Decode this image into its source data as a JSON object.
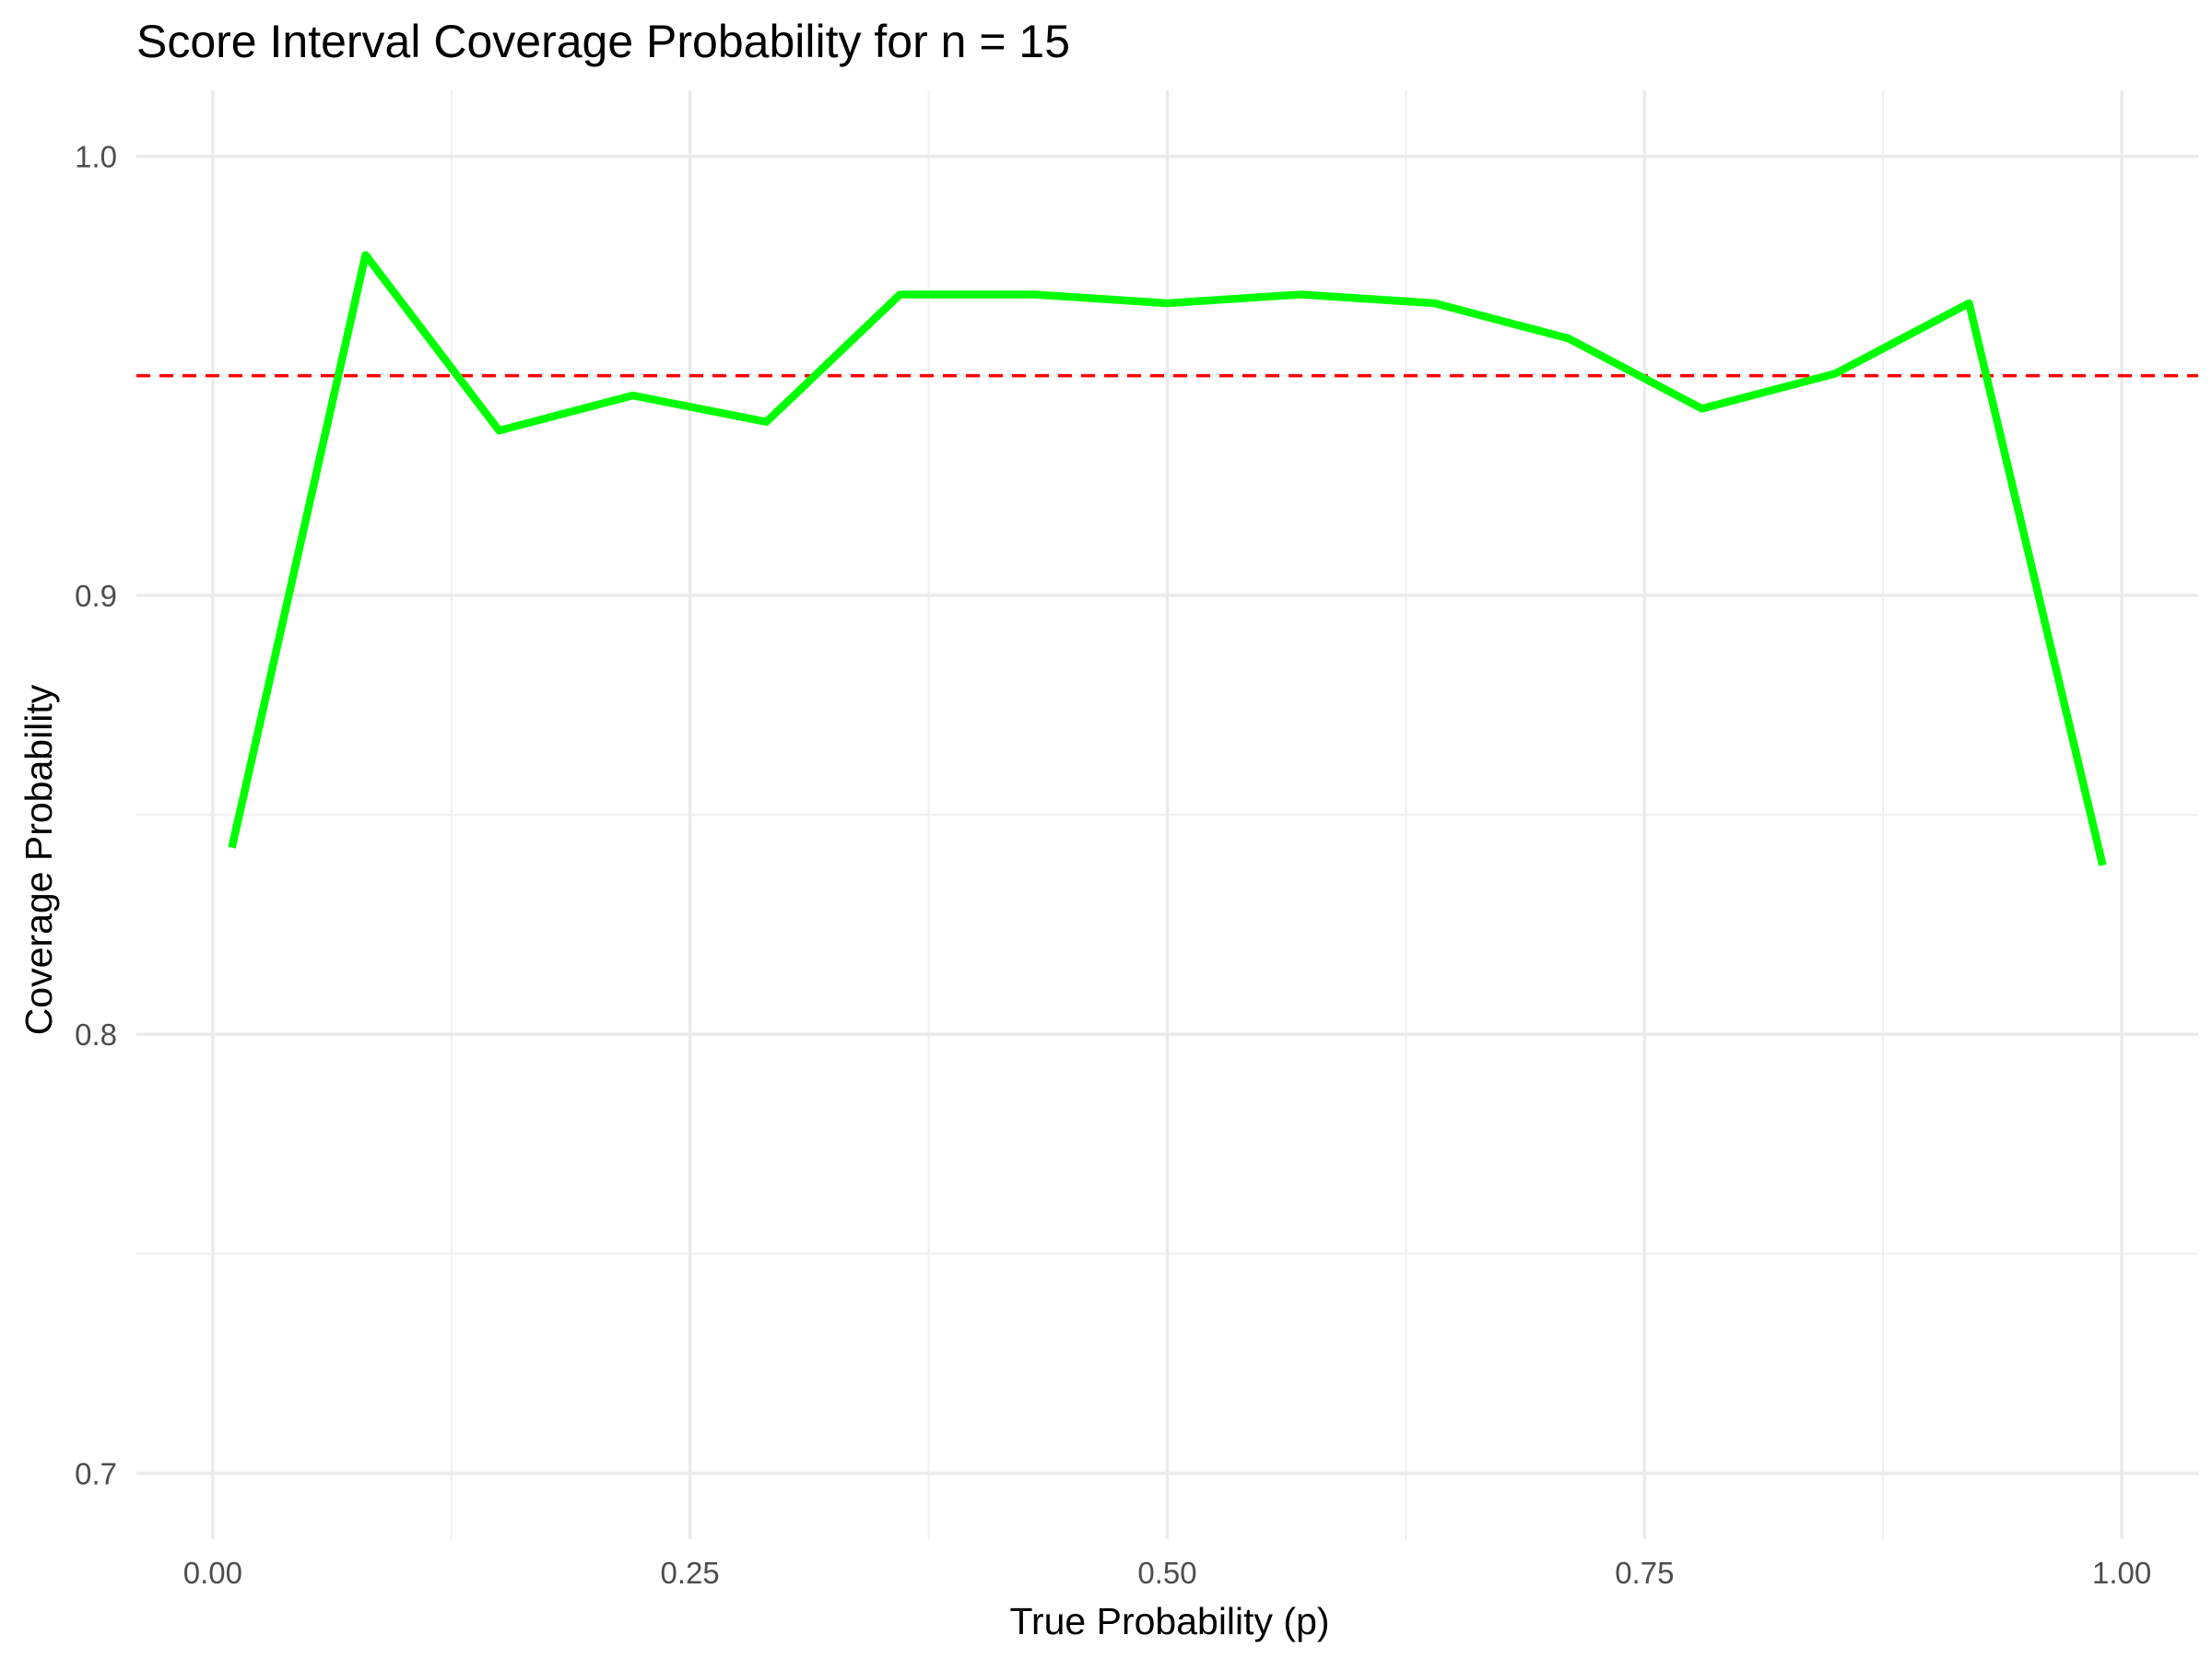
{
  "chart_data": {
    "type": "line",
    "title": "Score Interval Coverage Probability for n = 15",
    "xlabel": "True Probability (p)",
    "ylabel": "Coverage Probability",
    "xlim": [
      -0.04,
      1.04
    ],
    "ylim": [
      0.685,
      1.015
    ],
    "x_ticks": [
      0.0,
      0.25,
      0.5,
      0.75,
      1.0
    ],
    "x_tick_labels": [
      "0.00",
      "0.25",
      "0.50",
      "0.75",
      "1.00"
    ],
    "x_minor_ticks": [
      0.125,
      0.375,
      0.625,
      0.875
    ],
    "y_ticks": [
      0.7,
      0.8,
      0.9,
      1.0
    ],
    "y_tick_labels": [
      "0.7",
      "0.8",
      "0.9",
      "1.0"
    ],
    "y_minor_ticks": [
      0.75,
      0.85,
      0.95
    ],
    "grid": true,
    "reference_line": {
      "y": 0.95,
      "color": "#ff0000",
      "style": "dashed"
    },
    "series": [
      {
        "color": "#00ff00",
        "x": [
          0.01,
          0.08,
          0.15,
          0.22,
          0.29,
          0.36,
          0.43,
          0.5,
          0.57,
          0.64,
          0.71,
          0.78,
          0.85,
          0.92,
          0.99
        ],
        "y": [
          0.8425,
          0.9775,
          0.9375,
          0.9455,
          0.9395,
          0.9685,
          0.9685,
          0.9665,
          0.9685,
          0.9665,
          0.9585,
          0.9425,
          0.9505,
          0.9665,
          0.8385
        ]
      }
    ]
  }
}
